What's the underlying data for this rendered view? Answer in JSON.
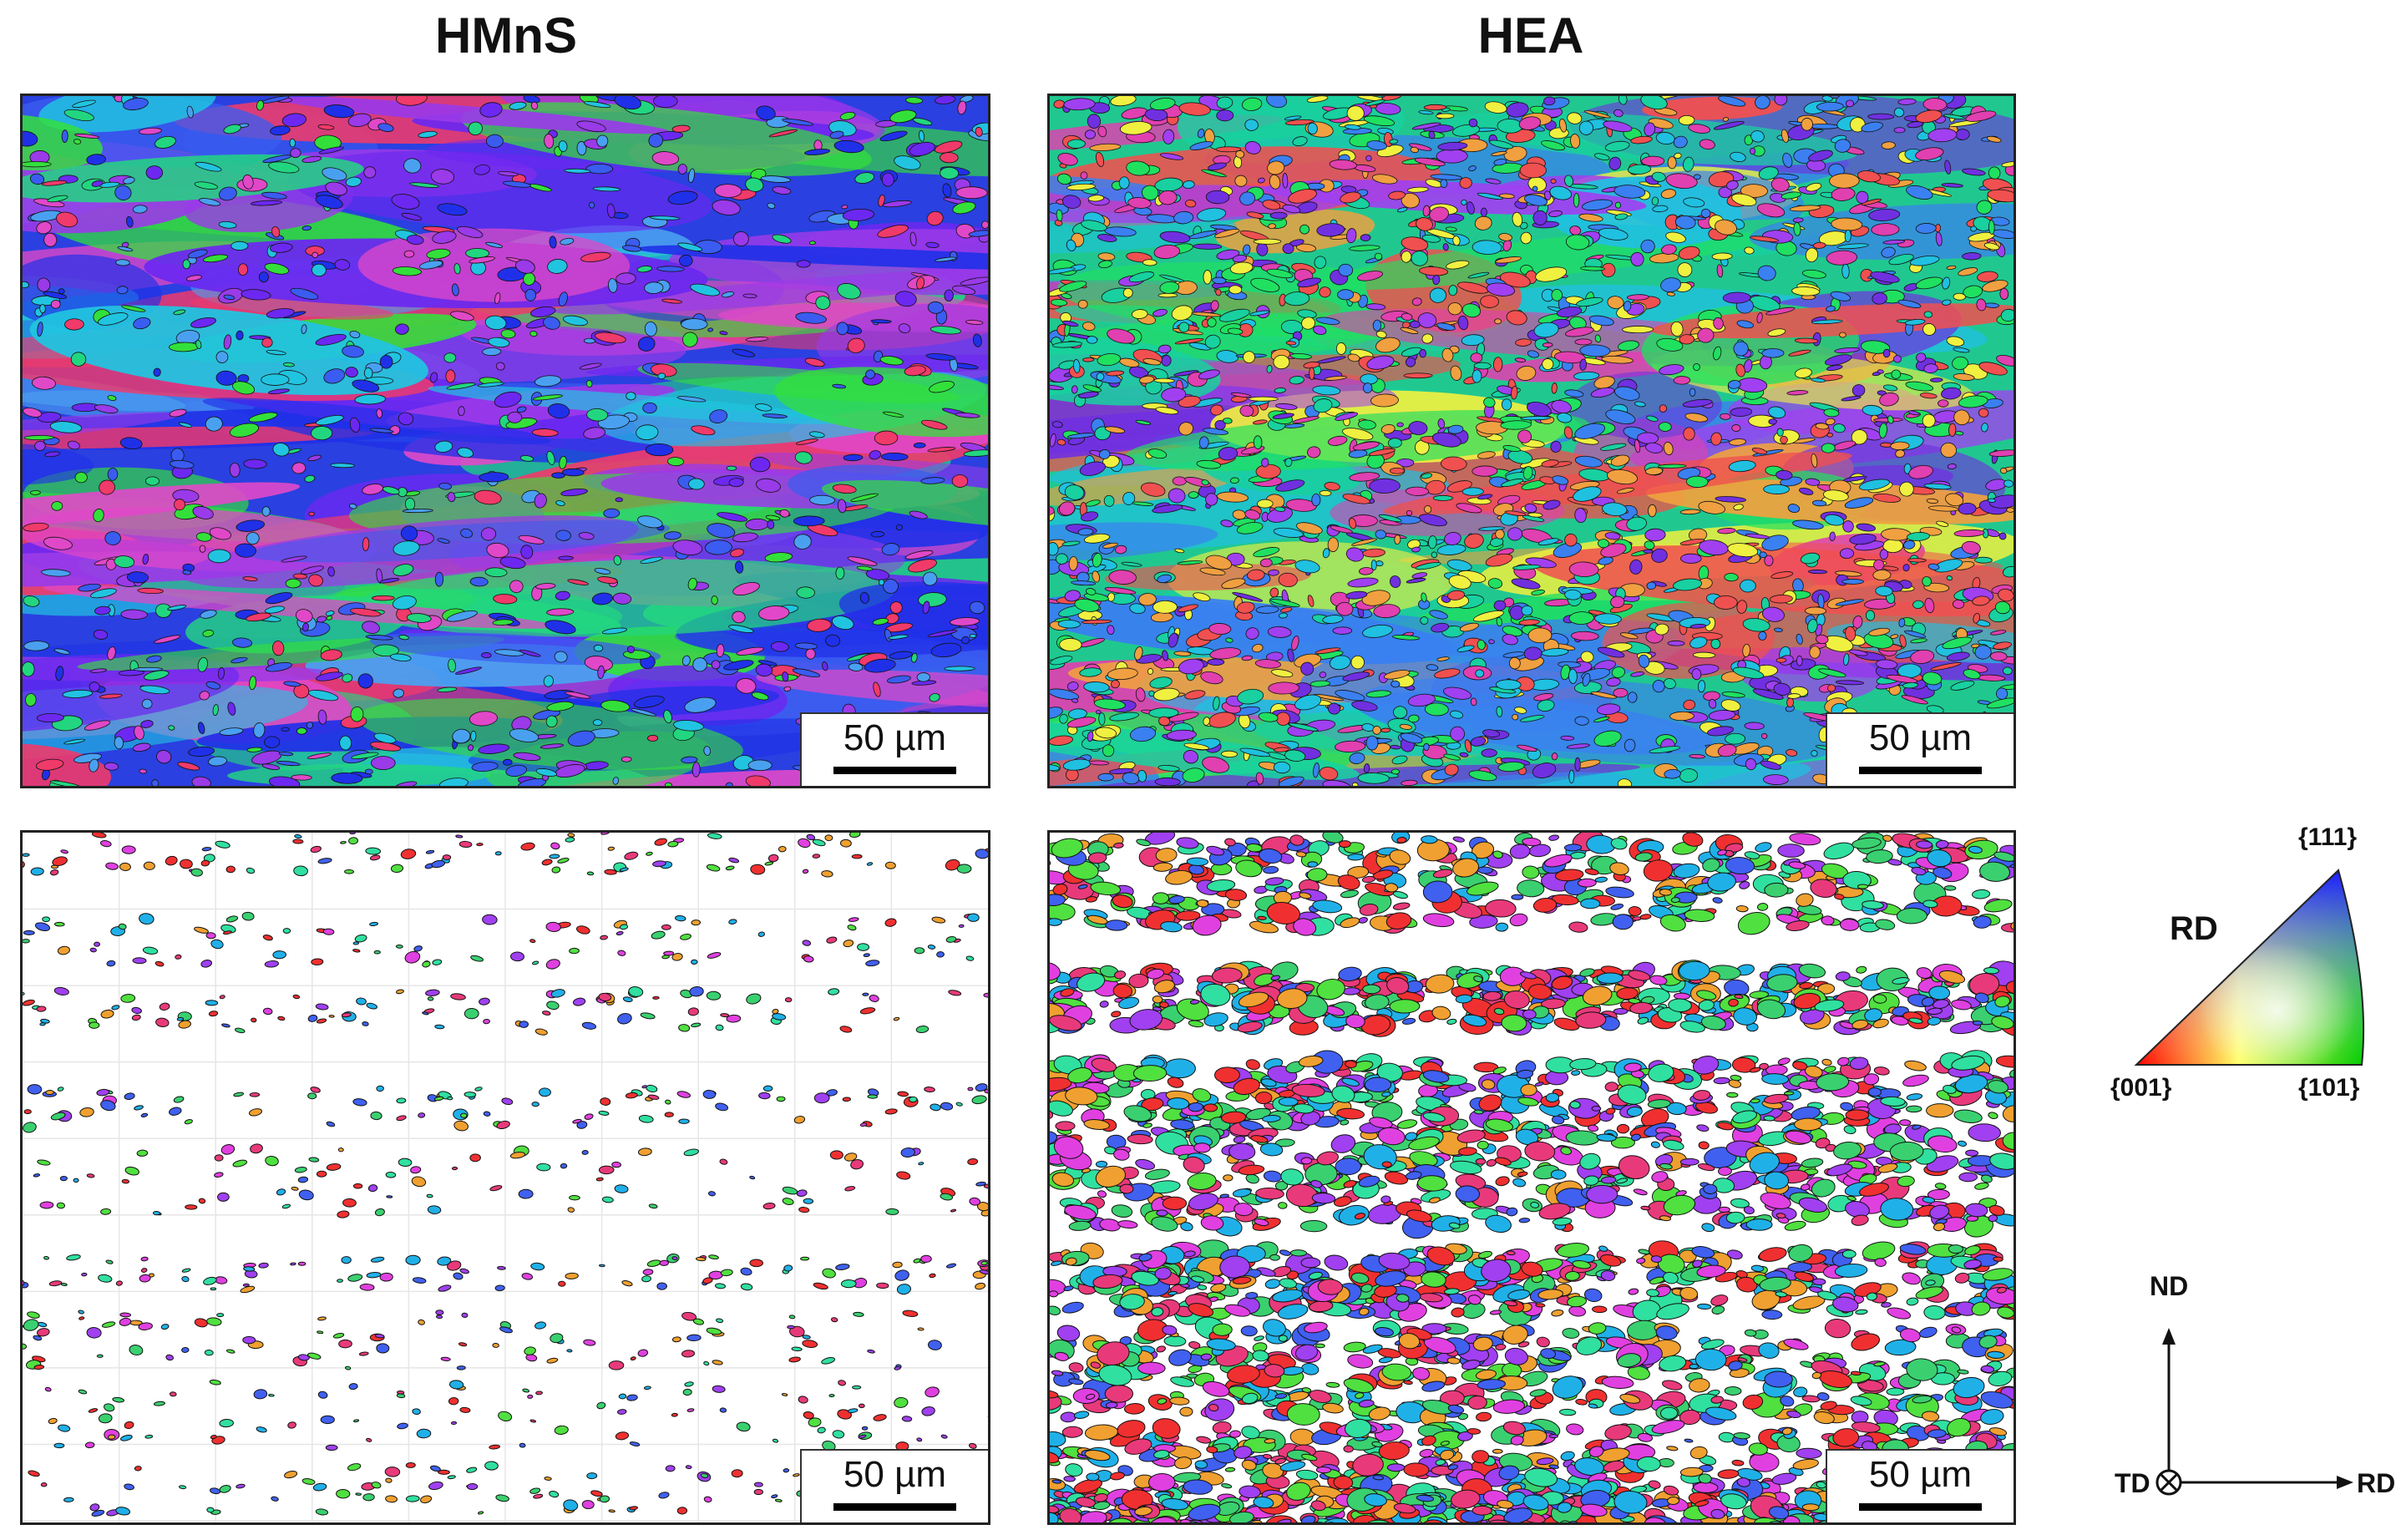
{
  "columns": {
    "left_title": "HMnS",
    "right_title": "HEA"
  },
  "scale_bars": {
    "label": "50 µm"
  },
  "ipf_legend": {
    "direction": "RD",
    "corner_111": "{111}",
    "corner_001": "{001}",
    "corner_101": "{101}",
    "colors": {
      "c001": "#ff0000",
      "c101": "#00cc00",
      "c111": "#1a1aff"
    }
  },
  "axes": {
    "vertical": "ND",
    "horizontal": "RD",
    "out_of_plane": "TD"
  },
  "palette": {
    "hmns_top": [
      "#2030e8",
      "#3a5cf0",
      "#21c4e0",
      "#22d680",
      "#33e03a",
      "#9a3ae8",
      "#e048c8",
      "#f03a6a",
      "#4aa0f0",
      "#6c28f0"
    ],
    "hea_top": [
      "#18d0a0",
      "#20e060",
      "#3a80f0",
      "#e040b0",
      "#f05050",
      "#a040f0",
      "#f0a040",
      "#20c0e0",
      "#f0f040",
      "#7030e0"
    ],
    "grains": [
      "#e83a7a",
      "#3ad070",
      "#20b0e8",
      "#f03030",
      "#a040f0",
      "#30e0a0",
      "#f0a030",
      "#4060f0",
      "#e040e0",
      "#50e040"
    ]
  }
}
